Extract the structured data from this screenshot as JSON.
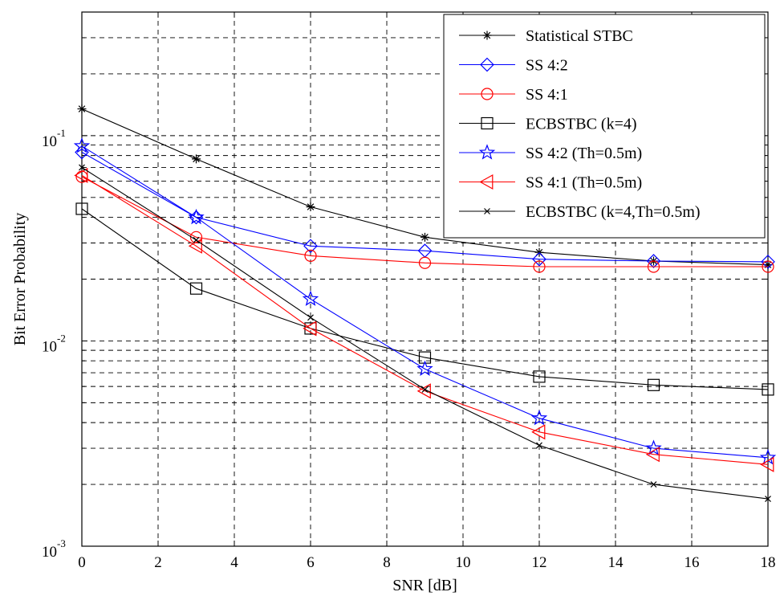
{
  "chart_data": {
    "type": "line",
    "xlabel": "SNR [dB]",
    "ylabel": "Bit Error Probability",
    "xlim": [
      0,
      18
    ],
    "ylim": [
      0.001,
      0.4
    ],
    "yscale": "log",
    "grid": true,
    "legend_position": "top-right",
    "x_ticks": [
      0,
      2,
      4,
      6,
      8,
      10,
      12,
      14,
      16,
      18
    ],
    "y_ticks": [
      {
        "value": 0.1,
        "base": "10",
        "exp": "-1"
      },
      {
        "value": 0.01,
        "base": "10",
        "exp": "-2"
      },
      {
        "value": 0.001,
        "base": "10",
        "exp": "-3"
      }
    ],
    "x": [
      0,
      3,
      6,
      9,
      12,
      15,
      18
    ],
    "series": [
      {
        "name": "Statistical STBC",
        "color": "#000000",
        "marker": "asterisk",
        "values": [
          0.135,
          0.077,
          0.045,
          0.032,
          0.027,
          0.0245,
          0.0235
        ]
      },
      {
        "name": "SS 4:2",
        "color": "#0000ff",
        "marker": "diamond",
        "values": [
          0.083,
          0.04,
          0.029,
          0.0275,
          0.025,
          0.0245,
          0.0243
        ]
      },
      {
        "name": "SS 4:1",
        "color": "#ff0000",
        "marker": "circle",
        "values": [
          0.063,
          0.032,
          0.026,
          0.024,
          0.023,
          0.023,
          0.023
        ]
      },
      {
        "name": "ECBSTBC (k=4)",
        "color": "#000000",
        "marker": "square",
        "values": [
          0.044,
          0.018,
          0.0115,
          0.0083,
          0.0067,
          0.0061,
          0.0058
        ]
      },
      {
        "name": "SS 4:2 (Th=0.5m)",
        "color": "#0000ff",
        "marker": "star",
        "values": [
          0.089,
          0.04,
          0.016,
          0.0073,
          0.0042,
          0.003,
          0.0027
        ]
      },
      {
        "name": "SS 4:1 (Th=0.5m)",
        "color": "#ff0000",
        "marker": "triangle-left",
        "values": [
          0.064,
          0.029,
          0.0115,
          0.0057,
          0.0036,
          0.0028,
          0.0025
        ]
      },
      {
        "name": "ECBSTBC (k=4,Th=0.5m)",
        "color": "#000000",
        "marker": "x",
        "values": [
          0.07,
          0.031,
          0.013,
          0.0058,
          0.0031,
          0.002,
          0.0017
        ]
      }
    ]
  }
}
